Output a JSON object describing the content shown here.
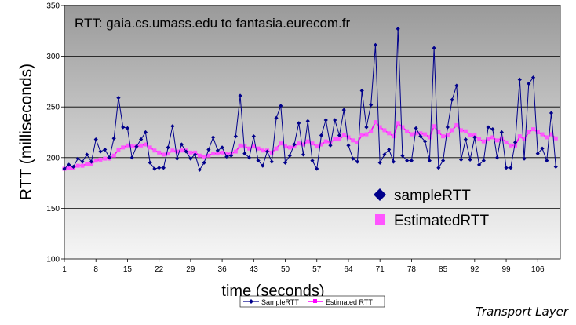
{
  "chart_data": {
    "type": "line",
    "title": "RTT: gaia.cs.umass.edu to fantasia.eurecom.fr",
    "xlabel": "time (seconds)",
    "ylabel": "RTT (milliseconds)",
    "ylim": [
      100,
      350
    ],
    "yticks": [
      100,
      150,
      200,
      250,
      300,
      350
    ],
    "xlim": [
      1,
      111
    ],
    "xticks": [
      1,
      8,
      15,
      22,
      29,
      36,
      43,
      50,
      57,
      64,
      71,
      78,
      85,
      92,
      99,
      106
    ],
    "grid": "horizontal",
    "background": "gradient-gray",
    "legend_in_plot": [
      {
        "name": "sampleRTT",
        "marker": "diamond",
        "color": "#00008b"
      },
      {
        "name": "EstimatedRTT",
        "marker": "square",
        "color": "#ff55ff"
      }
    ],
    "legend_bottom": [
      {
        "name": "SampleRTT",
        "color": "#00008b"
      },
      {
        "name": "Estimated RTT",
        "color": "#ff00ff"
      }
    ],
    "series": [
      {
        "name": "SampleRTT",
        "color": "#00008b",
        "values": [
          189,
          193,
          191,
          199,
          196,
          203,
          196,
          218,
          206,
          208,
          200,
          219,
          259,
          230,
          229,
          200,
          211,
          218,
          225,
          195,
          189,
          190,
          190,
          210,
          231,
          199,
          213,
          206,
          199,
          203,
          188,
          195,
          208,
          220,
          207,
          210,
          201,
          202,
          221,
          261,
          204,
          200,
          221,
          197,
          192,
          206,
          196,
          239,
          251,
          195,
          202,
          213,
          234,
          203,
          236,
          197,
          189,
          222,
          237,
          212,
          237,
          222,
          247,
          212,
          199,
          196,
          266,
          230,
          252,
          311,
          195,
          203,
          208,
          196,
          327,
          202,
          197,
          197,
          229,
          221,
          216,
          197,
          308,
          190,
          197,
          230,
          257,
          271,
          198,
          218,
          198,
          220,
          193,
          197,
          230,
          228,
          200,
          225,
          190,
          190,
          215,
          277,
          199,
          273,
          279,
          204,
          209,
          197,
          244,
          191
        ]
      },
      {
        "name": "Estimated RTT",
        "color": "#ff00ff",
        "values": [
          189,
          190,
          190,
          192,
          192,
          194,
          194,
          197,
          198,
          199,
          199,
          202,
          208,
          210,
          212,
          211,
          211,
          212,
          213,
          210,
          207,
          205,
          203,
          204,
          207,
          206,
          207,
          207,
          205,
          205,
          202,
          201,
          202,
          204,
          204,
          205,
          204,
          204,
          206,
          212,
          211,
          209,
          211,
          209,
          207,
          207,
          205,
          209,
          214,
          211,
          210,
          211,
          214,
          213,
          216,
          214,
          211,
          213,
          216,
          215,
          218,
          218,
          222,
          220,
          217,
          215,
          222,
          223,
          226,
          235,
          230,
          227,
          224,
          221,
          234,
          230,
          226,
          223,
          224,
          224,
          223,
          220,
          231,
          225,
          221,
          222,
          227,
          232,
          227,
          226,
          222,
          222,
          218,
          216,
          218,
          220,
          217,
          219,
          215,
          212,
          212,
          221,
          218,
          225,
          228,
          225,
          223,
          220,
          223,
          219
        ]
      }
    ]
  },
  "corner_label": "Transport Layer"
}
